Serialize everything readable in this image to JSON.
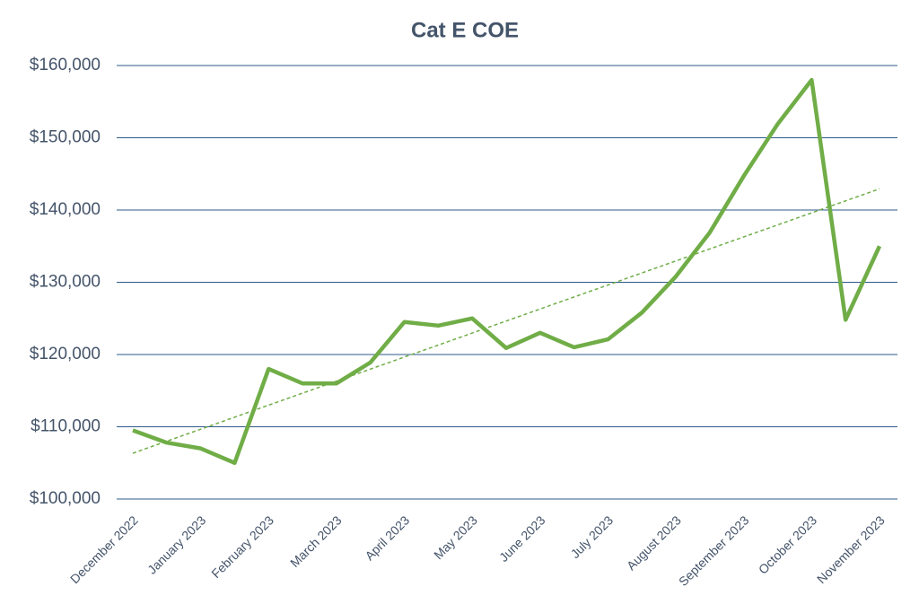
{
  "chart_data": {
    "type": "line",
    "title": "Cat E COE",
    "categories": [
      "December 2022",
      null,
      "January 2023",
      null,
      "February 2023",
      null,
      "March 2023",
      null,
      "April 2023",
      null,
      "May 2023",
      null,
      "June 2023",
      null,
      "July 2023",
      null,
      "August 2023",
      null,
      "September 2023",
      null,
      "October 2023",
      null,
      "November 2023"
    ],
    "series": [
      {
        "name": "Cat E COE",
        "color": "#70ad47",
        "values": [
          109500,
          107800,
          107000,
          105000,
          118000,
          116000,
          116000,
          118900,
          124500,
          124000,
          125000,
          120900,
          123000,
          121000,
          122100,
          125800,
          130800,
          136900,
          144700,
          151900,
          158000,
          124800,
          135000
        ]
      }
    ],
    "ylim": [
      100000,
      160000
    ],
    "yticks": [
      {
        "value": 100000,
        "label": "$100,000"
      },
      {
        "value": 110000,
        "label": "$110,000"
      },
      {
        "value": 120000,
        "label": "$120,000"
      },
      {
        "value": 130000,
        "label": "$130,000"
      },
      {
        "value": 140000,
        "label": "$140,000"
      },
      {
        "value": 150000,
        "label": "$150,000"
      },
      {
        "value": 160000,
        "label": "$160,000"
      }
    ],
    "grid": true,
    "trendline": true
  }
}
